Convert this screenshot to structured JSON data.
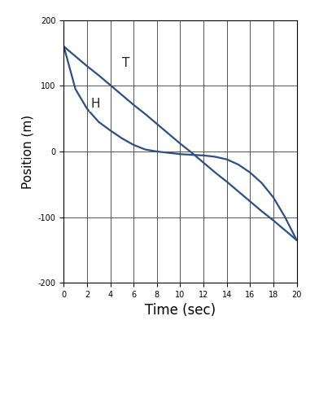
{
  "chart_data": {
    "type": "line",
    "x_label": "Time (sec)",
    "y_label": "Position (m)",
    "x": [
      0,
      1,
      2,
      3,
      4,
      5,
      6,
      7,
      8,
      9,
      10,
      11,
      12,
      13,
      14,
      15,
      16,
      17,
      18,
      19,
      20
    ],
    "series": [
      {
        "name": "T",
        "color": "#2c4f86",
        "values": [
          160,
          145,
          130,
          116,
          101,
          86,
          71,
          57,
          42,
          27,
          12,
          -2,
          -17,
          -32,
          -46,
          -61,
          -76,
          -91,
          -105,
          -120,
          -135
        ]
      },
      {
        "name": "H",
        "color": "#2c4f86",
        "values": [
          160,
          95,
          65,
          45,
          32,
          20,
          10,
          3,
          0,
          -2,
          -4,
          -5,
          -6,
          -8,
          -12,
          -20,
          -32,
          -48,
          -70,
          -100,
          -135
        ]
      }
    ],
    "annotations": [
      {
        "text": "T",
        "x": 5,
        "y": 135
      },
      {
        "text": "H",
        "x": 2.3,
        "y": 72
      }
    ],
    "xlim": [
      0,
      20
    ],
    "xticks": [
      0,
      2,
      4,
      6,
      8,
      10,
      12,
      14,
      16,
      18,
      20
    ],
    "ylim": [
      -200,
      200
    ],
    "yticks": [
      -200,
      -100,
      0,
      100,
      200
    ],
    "grid": true
  }
}
